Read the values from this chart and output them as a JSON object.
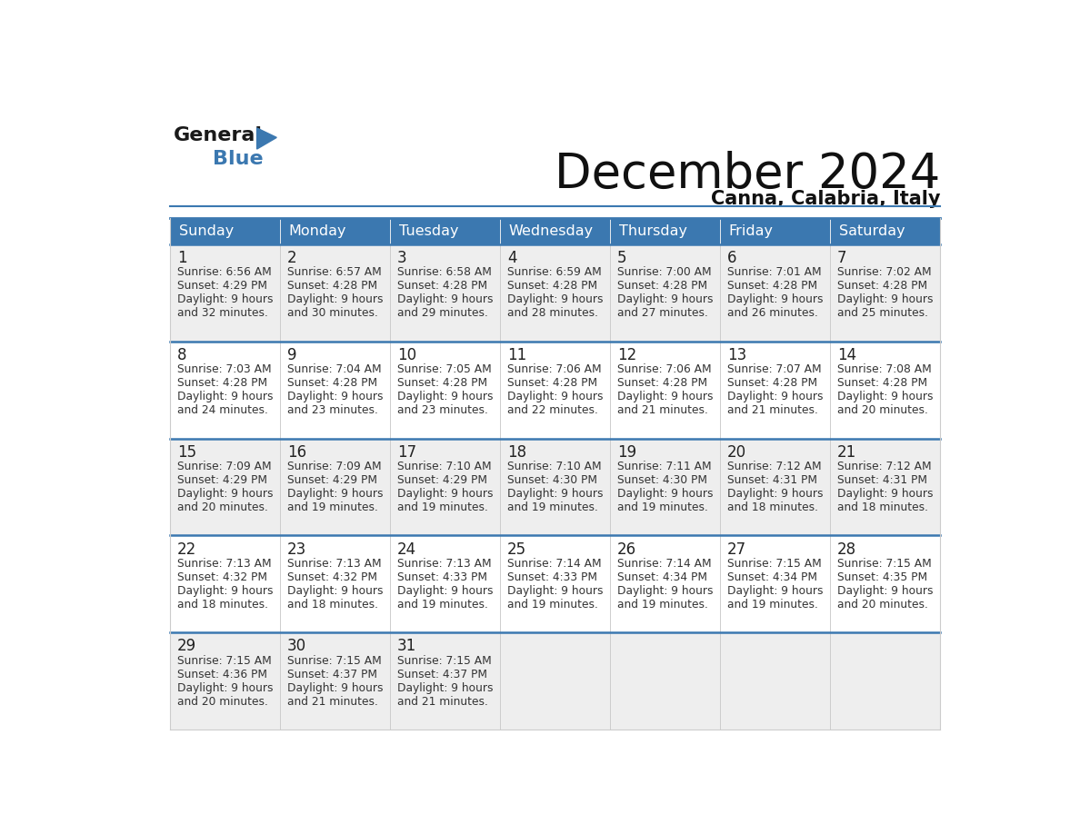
{
  "title": "December 2024",
  "subtitle": "Canna, Calabria, Italy",
  "header_color": "#3b78b0",
  "header_text_color": "#ffffff",
  "weekdays": [
    "Sunday",
    "Monday",
    "Tuesday",
    "Wednesday",
    "Thursday",
    "Friday",
    "Saturday"
  ],
  "bg_color": "#ffffff",
  "cell_bg_even": "#eeeeee",
  "cell_bg_odd": "#ffffff",
  "day_number_color": "#222222",
  "cell_text_color": "#333333",
  "grid_color": "#cccccc",
  "row_border_color": "#3b78b0",
  "weeks": [
    [
      {
        "day": 1,
        "sunrise": "6:56 AM",
        "sunset": "4:29 PM",
        "daylight_h": "9 hours",
        "daylight_m": "and 32 minutes."
      },
      {
        "day": 2,
        "sunrise": "6:57 AM",
        "sunset": "4:28 PM",
        "daylight_h": "9 hours",
        "daylight_m": "and 30 minutes."
      },
      {
        "day": 3,
        "sunrise": "6:58 AM",
        "sunset": "4:28 PM",
        "daylight_h": "9 hours",
        "daylight_m": "and 29 minutes."
      },
      {
        "day": 4,
        "sunrise": "6:59 AM",
        "sunset": "4:28 PM",
        "daylight_h": "9 hours",
        "daylight_m": "and 28 minutes."
      },
      {
        "day": 5,
        "sunrise": "7:00 AM",
        "sunset": "4:28 PM",
        "daylight_h": "9 hours",
        "daylight_m": "and 27 minutes."
      },
      {
        "day": 6,
        "sunrise": "7:01 AM",
        "sunset": "4:28 PM",
        "daylight_h": "9 hours",
        "daylight_m": "and 26 minutes."
      },
      {
        "day": 7,
        "sunrise": "7:02 AM",
        "sunset": "4:28 PM",
        "daylight_h": "9 hours",
        "daylight_m": "and 25 minutes."
      }
    ],
    [
      {
        "day": 8,
        "sunrise": "7:03 AM",
        "sunset": "4:28 PM",
        "daylight_h": "9 hours",
        "daylight_m": "and 24 minutes."
      },
      {
        "day": 9,
        "sunrise": "7:04 AM",
        "sunset": "4:28 PM",
        "daylight_h": "9 hours",
        "daylight_m": "and 23 minutes."
      },
      {
        "day": 10,
        "sunrise": "7:05 AM",
        "sunset": "4:28 PM",
        "daylight_h": "9 hours",
        "daylight_m": "and 23 minutes."
      },
      {
        "day": 11,
        "sunrise": "7:06 AM",
        "sunset": "4:28 PM",
        "daylight_h": "9 hours",
        "daylight_m": "and 22 minutes."
      },
      {
        "day": 12,
        "sunrise": "7:06 AM",
        "sunset": "4:28 PM",
        "daylight_h": "9 hours",
        "daylight_m": "and 21 minutes."
      },
      {
        "day": 13,
        "sunrise": "7:07 AM",
        "sunset": "4:28 PM",
        "daylight_h": "9 hours",
        "daylight_m": "and 21 minutes."
      },
      {
        "day": 14,
        "sunrise": "7:08 AM",
        "sunset": "4:28 PM",
        "daylight_h": "9 hours",
        "daylight_m": "and 20 minutes."
      }
    ],
    [
      {
        "day": 15,
        "sunrise": "7:09 AM",
        "sunset": "4:29 PM",
        "daylight_h": "9 hours",
        "daylight_m": "and 20 minutes."
      },
      {
        "day": 16,
        "sunrise": "7:09 AM",
        "sunset": "4:29 PM",
        "daylight_h": "9 hours",
        "daylight_m": "and 19 minutes."
      },
      {
        "day": 17,
        "sunrise": "7:10 AM",
        "sunset": "4:29 PM",
        "daylight_h": "9 hours",
        "daylight_m": "and 19 minutes."
      },
      {
        "day": 18,
        "sunrise": "7:10 AM",
        "sunset": "4:30 PM",
        "daylight_h": "9 hours",
        "daylight_m": "and 19 minutes."
      },
      {
        "day": 19,
        "sunrise": "7:11 AM",
        "sunset": "4:30 PM",
        "daylight_h": "9 hours",
        "daylight_m": "and 19 minutes."
      },
      {
        "day": 20,
        "sunrise": "7:12 AM",
        "sunset": "4:31 PM",
        "daylight_h": "9 hours",
        "daylight_m": "and 18 minutes."
      },
      {
        "day": 21,
        "sunrise": "7:12 AM",
        "sunset": "4:31 PM",
        "daylight_h": "9 hours",
        "daylight_m": "and 18 minutes."
      }
    ],
    [
      {
        "day": 22,
        "sunrise": "7:13 AM",
        "sunset": "4:32 PM",
        "daylight_h": "9 hours",
        "daylight_m": "and 18 minutes."
      },
      {
        "day": 23,
        "sunrise": "7:13 AM",
        "sunset": "4:32 PM",
        "daylight_h": "9 hours",
        "daylight_m": "and 18 minutes."
      },
      {
        "day": 24,
        "sunrise": "7:13 AM",
        "sunset": "4:33 PM",
        "daylight_h": "9 hours",
        "daylight_m": "and 19 minutes."
      },
      {
        "day": 25,
        "sunrise": "7:14 AM",
        "sunset": "4:33 PM",
        "daylight_h": "9 hours",
        "daylight_m": "and 19 minutes."
      },
      {
        "day": 26,
        "sunrise": "7:14 AM",
        "sunset": "4:34 PM",
        "daylight_h": "9 hours",
        "daylight_m": "and 19 minutes."
      },
      {
        "day": 27,
        "sunrise": "7:15 AM",
        "sunset": "4:34 PM",
        "daylight_h": "9 hours",
        "daylight_m": "and 19 minutes."
      },
      {
        "day": 28,
        "sunrise": "7:15 AM",
        "sunset": "4:35 PM",
        "daylight_h": "9 hours",
        "daylight_m": "and 20 minutes."
      }
    ],
    [
      {
        "day": 29,
        "sunrise": "7:15 AM",
        "sunset": "4:36 PM",
        "daylight_h": "9 hours",
        "daylight_m": "and 20 minutes."
      },
      {
        "day": 30,
        "sunrise": "7:15 AM",
        "sunset": "4:37 PM",
        "daylight_h": "9 hours",
        "daylight_m": "and 21 minutes."
      },
      {
        "day": 31,
        "sunrise": "7:15 AM",
        "sunset": "4:37 PM",
        "daylight_h": "9 hours",
        "daylight_m": "and 21 minutes."
      },
      null,
      null,
      null,
      null
    ]
  ]
}
